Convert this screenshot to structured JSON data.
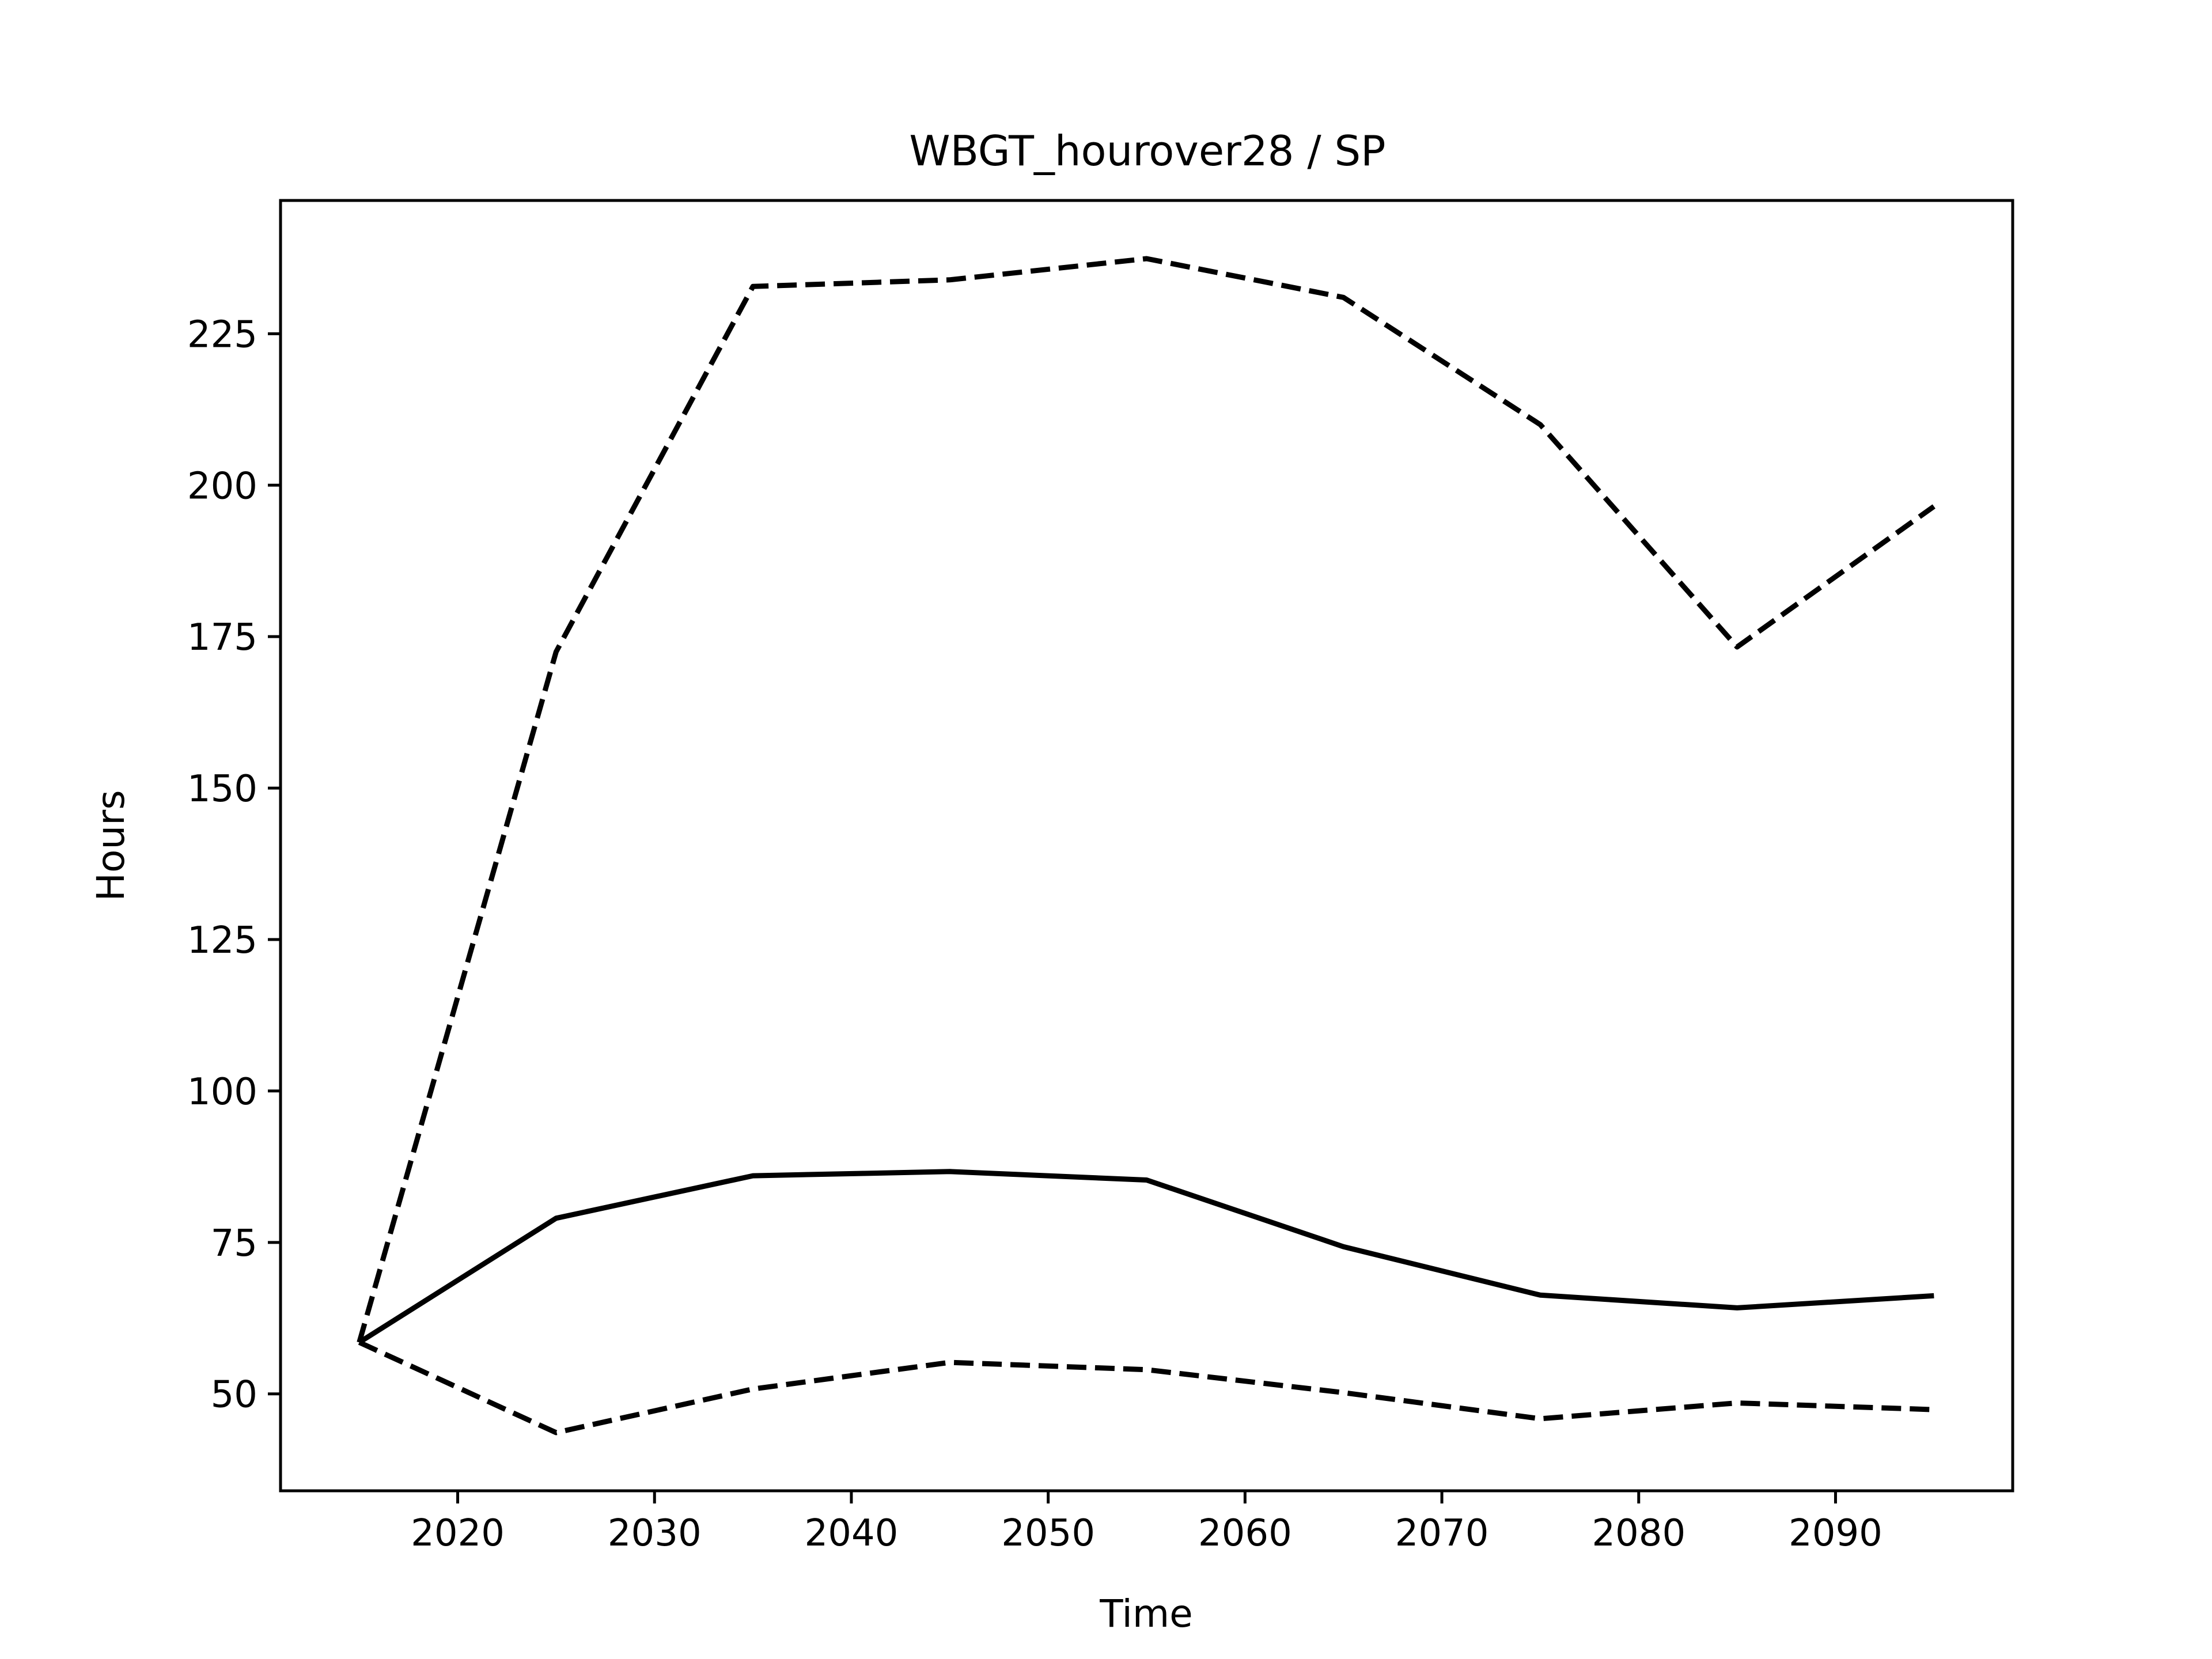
{
  "chart_data": {
    "type": "line",
    "title": "WBGT_hourover28 / SP",
    "xlabel": "Time",
    "ylabel": "Hours",
    "xlim": [
      2011,
      2099
    ],
    "ylim": [
      34,
      247
    ],
    "xticks": [
      2020,
      2030,
      2040,
      2050,
      2060,
      2070,
      2080,
      2090
    ],
    "yticks": [
      50,
      75,
      100,
      125,
      150,
      175,
      200,
      225
    ],
    "grid": false,
    "legend": "none",
    "x": [
      2015,
      2025,
      2035,
      2045,
      2055,
      2065,
      2075,
      2085,
      2095
    ],
    "series": [
      {
        "style": "solid",
        "color": "#000000",
        "values": [
          58.5,
          79,
          86,
          86.7,
          85.3,
          74.3,
          66.3,
          64.2,
          66.2
        ]
      },
      {
        "style": "dashed",
        "color": "#000000",
        "values": [
          58.5,
          172.5,
          232.8,
          233.9,
          237.4,
          231,
          210,
          173.3,
          196.5
        ]
      },
      {
        "style": "dashed",
        "color": "#000000",
        "values": [
          58.5,
          43.6,
          50.8,
          55.2,
          54,
          50.2,
          45.9,
          48.5,
          47.4
        ]
      }
    ]
  }
}
